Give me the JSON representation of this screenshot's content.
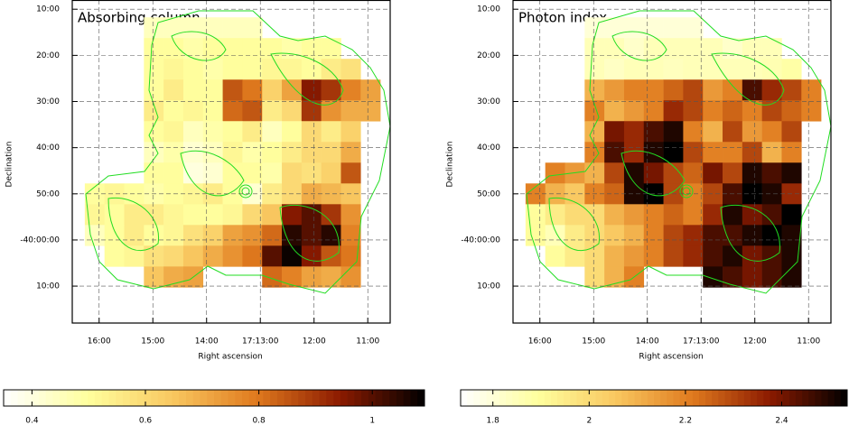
{
  "chart_data": [
    {
      "type": "heatmap",
      "title": "Absorbing column",
      "x_label": "Right ascension",
      "y_label": "Declination",
      "x": [
        965,
        943,
        921,
        899,
        877,
        855,
        833,
        811,
        789,
        767,
        745,
        723,
        701,
        679,
        657
      ],
      "y": [
        -2354,
        -2358.5,
        -2363,
        -2367.5,
        -2372,
        -2376.5,
        -2381,
        -2385.5,
        -2390,
        -2394.5,
        -2399,
        -2403.5,
        -2408
      ],
      "z": [
        [
          null,
          null,
          null,
          0.45,
          0.45,
          0.45,
          0.45,
          0.45,
          0.45,
          null,
          null,
          null,
          null,
          null,
          null
        ],
        [
          null,
          null,
          null,
          0.5,
          0.5,
          0.48,
          0.5,
          0.5,
          0.5,
          0.5,
          0.48,
          0.5,
          0.5,
          null,
          null
        ],
        [
          null,
          null,
          null,
          0.5,
          0.52,
          0.5,
          0.48,
          0.5,
          0.5,
          0.52,
          0.52,
          0.5,
          0.55,
          0.58,
          null
        ],
        [
          null,
          null,
          null,
          0.5,
          0.55,
          0.5,
          0.5,
          0.85,
          0.8,
          0.62,
          0.72,
          0.95,
          0.9,
          0.78,
          0.72
        ],
        [
          null,
          null,
          null,
          0.55,
          0.5,
          0.52,
          0.5,
          0.82,
          0.85,
          0.55,
          0.6,
          0.9,
          0.75,
          0.7,
          0.7
        ],
        [
          null,
          null,
          null,
          0.5,
          0.52,
          0.45,
          0.48,
          0.5,
          0.55,
          0.45,
          0.5,
          0.6,
          0.55,
          0.62,
          null
        ],
        [
          null,
          null,
          null,
          0.45,
          0.48,
          0.42,
          0.45,
          0.52,
          0.48,
          0.5,
          0.55,
          0.6,
          0.6,
          0.7,
          null
        ],
        [
          null,
          null,
          null,
          0.5,
          0.5,
          0.4,
          0.42,
          0.5,
          0.5,
          0.48,
          0.6,
          0.58,
          0.62,
          0.85,
          null
        ],
        [
          0.5,
          0.52,
          0.5,
          0.48,
          0.5,
          0.52,
          0.55,
          0.5,
          0.42,
          0.55,
          0.6,
          0.7,
          0.68,
          0.65,
          null
        ],
        [
          0.52,
          0.5,
          0.55,
          0.55,
          0.52,
          0.5,
          0.5,
          0.52,
          0.6,
          0.65,
          0.95,
          1.0,
          0.9,
          0.75,
          null
        ],
        [
          0.45,
          0.5,
          0.55,
          0.5,
          0.52,
          0.58,
          0.62,
          0.72,
          0.75,
          0.82,
          1.05,
          1.0,
          1.05,
          0.78,
          null
        ],
        [
          null,
          0.5,
          0.52,
          0.58,
          0.6,
          0.65,
          0.7,
          0.75,
          0.8,
          1.0,
          1.08,
          0.95,
          0.85,
          0.8,
          null
        ],
        [
          null,
          null,
          null,
          0.65,
          0.7,
          0.72,
          null,
          null,
          null,
          0.82,
          0.78,
          0.72,
          0.7,
          0.75,
          null
        ]
      ],
      "xlim": [
        990,
        635
      ],
      "ylim": [
        -2348,
        -2418
      ],
      "xticks": [
        {
          "value": 960,
          "label": "16:00"
        },
        {
          "value": 900,
          "label": "15:00"
        },
        {
          "value": 840,
          "label": "14:00"
        },
        {
          "value": 780,
          "label": "17:13:00"
        },
        {
          "value": 720,
          "label": "12:00"
        },
        {
          "value": 660,
          "label": "11:00"
        }
      ],
      "yticks": [
        {
          "value": -2350,
          "label": "10:00"
        },
        {
          "value": -2360,
          "label": "20:00"
        },
        {
          "value": -2370,
          "label": "30:00"
        },
        {
          "value": -2380,
          "label": "40:00"
        },
        {
          "value": -2390,
          "label": "50:00"
        },
        {
          "value": -2400,
          "label": "-40:00:00"
        },
        {
          "value": -2410,
          "label": "10:00"
        }
      ],
      "zlim": [
        0.35,
        1.092
      ],
      "zticks": [
        0.4,
        0.6,
        0.8,
        1
      ],
      "colormap": [
        "#ffffff",
        "#ffff9e",
        "#f9c860",
        "#e07a1e",
        "#8b1a00",
        "#000000"
      ],
      "grid": true
    },
    {
      "type": "heatmap",
      "title": "Photon index",
      "x_label": "Right ascension",
      "y_label": "Declination",
      "x": [
        965,
        943,
        921,
        899,
        877,
        855,
        833,
        811,
        789,
        767,
        745,
        723,
        701,
        679,
        657
      ],
      "y": [
        -2354,
        -2358.5,
        -2363,
        -2367.5,
        -2372,
        -2376.5,
        -2381,
        -2385.5,
        -2390,
        -2394.5,
        -2399,
        -2403.5,
        -2408
      ],
      "z": [
        [
          null,
          null,
          null,
          1.8,
          1.8,
          1.8,
          1.8,
          1.8,
          1.8,
          null,
          null,
          null,
          null,
          null,
          null
        ],
        [
          null,
          null,
          null,
          1.85,
          1.85,
          1.82,
          1.85,
          1.85,
          1.85,
          1.85,
          1.82,
          1.85,
          1.85,
          null,
          null
        ],
        [
          null,
          null,
          null,
          1.85,
          1.83,
          1.85,
          1.85,
          1.84,
          1.85,
          1.85,
          1.85,
          1.85,
          1.86,
          1.88,
          null
        ],
        [
          null,
          null,
          null,
          2.1,
          2.15,
          2.2,
          2.2,
          2.25,
          2.3,
          2.15,
          2.2,
          2.45,
          2.35,
          2.3,
          2.2
        ],
        [
          null,
          null,
          null,
          2.2,
          2.1,
          2.15,
          2.2,
          2.35,
          2.3,
          2.2,
          2.25,
          2.2,
          2.3,
          2.25,
          2.2
        ],
        [
          null,
          null,
          null,
          2.1,
          2.4,
          2.35,
          2.45,
          2.5,
          2.2,
          2.1,
          2.3,
          2.15,
          2.2,
          2.3,
          null
        ],
        [
          null,
          null,
          null,
          2.2,
          2.45,
          2.35,
          2.5,
          2.55,
          2.3,
          2.2,
          2.2,
          2.3,
          2.1,
          2.2,
          null
        ],
        [
          null,
          2.2,
          2.15,
          2.1,
          2.3,
          2.5,
          2.4,
          2.3,
          2.25,
          2.4,
          2.3,
          2.5,
          2.45,
          2.5,
          null
        ],
        [
          2.2,
          2.1,
          2.05,
          2.2,
          2.25,
          2.5,
          2.55,
          2.3,
          2.2,
          2.3,
          2.45,
          2.55,
          2.5,
          2.35,
          null
        ],
        [
          1.9,
          1.95,
          2.0,
          2.0,
          2.1,
          2.15,
          2.2,
          2.25,
          2.2,
          2.35,
          2.5,
          2.4,
          2.45,
          2.55,
          null
        ],
        [
          1.9,
          1.85,
          1.95,
          2.0,
          2.05,
          2.1,
          2.2,
          2.3,
          2.35,
          2.45,
          2.45,
          2.5,
          2.55,
          2.5,
          null
        ],
        [
          null,
          1.9,
          1.95,
          2.0,
          2.1,
          2.15,
          2.2,
          2.3,
          2.35,
          2.45,
          2.5,
          2.4,
          2.45,
          2.5,
          null
        ],
        [
          null,
          null,
          null,
          2.0,
          2.1,
          2.2,
          null,
          null,
          null,
          2.5,
          2.45,
          2.4,
          2.45,
          2.5,
          null
        ]
      ],
      "xlim": [
        990,
        635
      ],
      "ylim": [
        -2348,
        -2418
      ],
      "xticks": [
        {
          "value": 960,
          "label": "16:00"
        },
        {
          "value": 900,
          "label": "15:00"
        },
        {
          "value": 840,
          "label": "14:00"
        },
        {
          "value": 780,
          "label": "17:13:00"
        },
        {
          "value": 720,
          "label": "12:00"
        },
        {
          "value": 660,
          "label": "11:00"
        }
      ],
      "yticks": [
        {
          "value": -2350,
          "label": "10:00"
        },
        {
          "value": -2360,
          "label": "20:00"
        },
        {
          "value": -2370,
          "label": "30:00"
        },
        {
          "value": -2380,
          "label": "40:00"
        },
        {
          "value": -2390,
          "label": "50:00"
        },
        {
          "value": -2400,
          "label": "-40:00:00"
        },
        {
          "value": -2410,
          "label": "10:00"
        }
      ],
      "zlim": [
        1.733,
        2.536
      ],
      "zticks": [
        1.8,
        2,
        2.2,
        2.4
      ],
      "colormap": [
        "#ffffff",
        "#ffff9e",
        "#f9c860",
        "#e07a1e",
        "#8b1a00",
        "#000000"
      ],
      "grid": true
    }
  ]
}
